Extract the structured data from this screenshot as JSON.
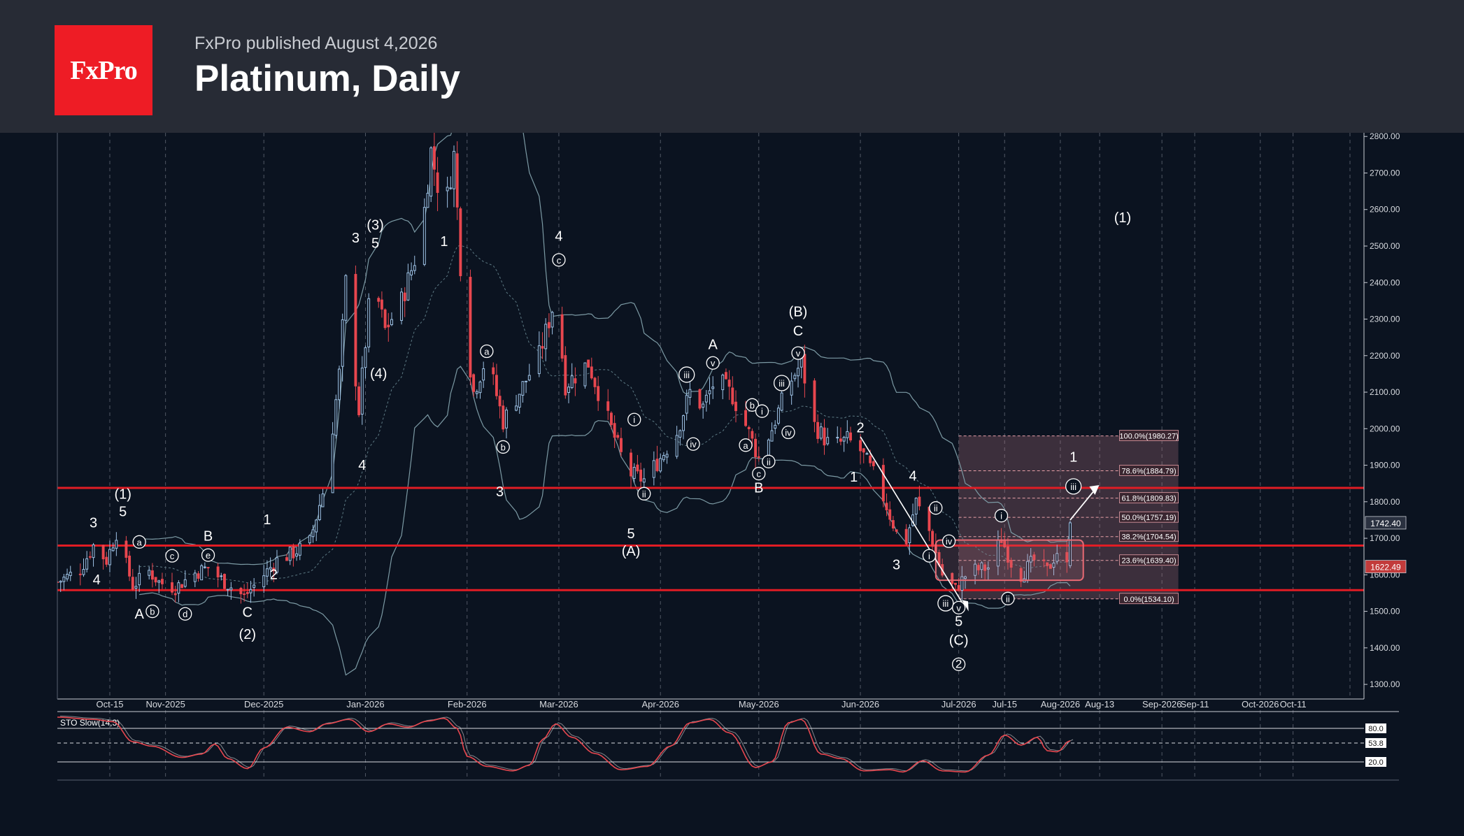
{
  "header": {
    "logo_text": "FxPro",
    "subtitle": "FxPro published August 4,2026",
    "title": "Platinum, Daily"
  },
  "chart_data": {
    "type": "candlestick",
    "title": "Platinum, Daily",
    "ylim": [
      1260,
      2810
    ],
    "y_ticks": [
      "2800.00",
      "2700.00",
      "2600.00",
      "2500.00",
      "2400.00",
      "2300.00",
      "2200.00",
      "2100.00",
      "2000.00",
      "1900.00",
      "1800.00",
      "1700.00",
      "1600.00",
      "1500.00",
      "1400.00",
      "1300.00"
    ],
    "x_range": [
      "2025-09-29",
      "2026-11-01"
    ],
    "x_ticks": [
      {
        "label": "Oct-15",
        "date": "2025-10-15"
      },
      {
        "label": "Nov-2025",
        "date": "2025-11-01"
      },
      {
        "label": "Dec-2025",
        "date": "2025-12-01"
      },
      {
        "label": "Jan-2026",
        "date": "2026-01-01"
      },
      {
        "label": "Feb-2026",
        "date": "2026-02-01"
      },
      {
        "label": "Mar-2026",
        "date": "2026-03-01"
      },
      {
        "label": "Apr-2026",
        "date": "2026-04-01"
      },
      {
        "label": "May-2026",
        "date": "2026-05-01"
      },
      {
        "label": "Jun-2026",
        "date": "2026-06-01"
      },
      {
        "label": "Jul-2026",
        "date": "2026-07-01"
      },
      {
        "label": "Jul-15",
        "date": "2026-07-15"
      },
      {
        "label": "Aug-2026",
        "date": "2026-08-01"
      },
      {
        "label": "Aug-13",
        "date": "2026-08-13"
      },
      {
        "label": "Sep-2026",
        "date": "2026-09-01"
      },
      {
        "label": "Sep-11",
        "date": "2026-09-11"
      },
      {
        "label": "Oct-2026",
        "date": "2026-10-01"
      },
      {
        "label": "Oct-11",
        "date": "2026-10-11"
      }
    ],
    "price_anchors": [
      [
        "2025-09-29",
        1580
      ],
      [
        "2025-10-06",
        1615
      ],
      [
        "2025-10-10",
        1680
      ],
      [
        "2025-10-14",
        1640
      ],
      [
        "2025-10-17",
        1715
      ],
      [
        "2025-10-22",
        1570
      ],
      [
        "2025-10-27",
        1610
      ],
      [
        "2025-10-30",
        1580
      ],
      [
        "2025-11-04",
        1565
      ],
      [
        "2025-11-10",
        1605
      ],
      [
        "2025-11-14",
        1620
      ],
      [
        "2025-11-19",
        1580
      ],
      [
        "2025-11-25",
        1540
      ],
      [
        "2025-12-01",
        1600
      ],
      [
        "2025-12-05",
        1640
      ],
      [
        "2025-12-10",
        1660
      ],
      [
        "2025-12-15",
        1690
      ],
      [
        "2025-12-20",
        1860
      ],
      [
        "2025-12-24",
        2150
      ],
      [
        "2025-12-26",
        2400
      ],
      [
        "2025-12-30",
        2050
      ],
      [
        "2026-01-03",
        2420
      ],
      [
        "2026-01-07",
        2270
      ],
      [
        "2026-01-12",
        2350
      ],
      [
        "2026-01-18",
        2520
      ],
      [
        "2026-01-21",
        2760
      ],
      [
        "2026-01-25",
        2580
      ],
      [
        "2026-01-28",
        2750
      ],
      [
        "2026-01-31",
        2300
      ],
      [
        "2026-02-03",
        2100
      ],
      [
        "2026-02-07",
        2200
      ],
      [
        "2026-02-12",
        2020
      ],
      [
        "2026-02-17",
        2100
      ],
      [
        "2026-02-23",
        2200
      ],
      [
        "2026-02-28",
        2360
      ],
      [
        "2026-03-03",
        2120
      ],
      [
        "2026-03-10",
        2180
      ],
      [
        "2026-03-17",
        2000
      ],
      [
        "2026-03-22",
        1880
      ],
      [
        "2026-03-27",
        1860
      ],
      [
        "2026-04-01",
        1920
      ],
      [
        "2026-04-06",
        1990
      ],
      [
        "2026-04-10",
        2100
      ],
      [
        "2026-04-14",
        2060
      ],
      [
        "2026-04-18",
        2140
      ],
      [
        "2026-04-23",
        2090
      ],
      [
        "2026-04-27",
        2010
      ],
      [
        "2026-05-01",
        1920
      ],
      [
        "2026-05-05",
        2000
      ],
      [
        "2026-05-10",
        2120
      ],
      [
        "2026-05-14",
        2180
      ],
      [
        "2026-05-18",
        2010
      ],
      [
        "2026-05-23",
        1950
      ],
      [
        "2026-05-28",
        1970
      ],
      [
        "2026-06-01",
        1940
      ],
      [
        "2026-06-06",
        1860
      ],
      [
        "2026-06-11",
        1740
      ],
      [
        "2026-06-14",
        1660
      ],
      [
        "2026-06-18",
        1800
      ],
      [
        "2026-06-22",
        1720
      ],
      [
        "2026-06-26",
        1600
      ],
      [
        "2026-06-30",
        1560
      ],
      [
        "2026-07-04",
        1610
      ],
      [
        "2026-07-10",
        1620
      ],
      [
        "2026-07-14",
        1700
      ],
      [
        "2026-07-19",
        1590
      ],
      [
        "2026-07-24",
        1640
      ],
      [
        "2026-07-28",
        1610
      ],
      [
        "2026-07-31",
        1665
      ],
      [
        "2026-08-03",
        1622
      ],
      [
        "2026-08-04",
        1742
      ]
    ],
    "horizontal_levels": [
      1838,
      1680,
      1558
    ],
    "fibonacci": {
      "levels": [
        {
          "label": "100.0%(1980.27)",
          "price": 1980.27
        },
        {
          "label": "78.6%(1884.79)",
          "price": 1884.79
        },
        {
          "label": "61.8%(1809.83)",
          "price": 1809.83
        },
        {
          "label": "50.0%(1757.19)",
          "price": 1757.19
        },
        {
          "label": "38.2%(1704.54)",
          "price": 1704.54
        },
        {
          "label": "23.6%(1639.40)",
          "price": 1639.4
        },
        {
          "label": "0.0%(1534.10)",
          "price": 1534.1
        }
      ],
      "start_date": "2026-07-01",
      "end_date": "2026-09-06"
    },
    "price_labels": [
      {
        "label": "1742.40",
        "price": 1742.4,
        "color": "#2a3140"
      },
      {
        "label": "1622.49",
        "price": 1622.49,
        "color": "#c23b3b"
      }
    ],
    "wave_labels": [
      {
        "text": "(1)",
        "date": "2025-10-19",
        "price": 1808
      },
      {
        "text": "5",
        "date": "2025-10-19",
        "price": 1760
      },
      {
        "text": "3",
        "date": "2025-10-10",
        "price": 1730
      },
      {
        "text": "4",
        "date": "2025-10-11",
        "price": 1574
      },
      {
        "text": "A",
        "date": "2025-10-24",
        "price": 1480
      },
      {
        "text": "B",
        "date": "2025-11-14",
        "price": 1693
      },
      {
        "text": "C",
        "date": "2025-11-26",
        "price": 1485
      },
      {
        "text": "(2)",
        "date": "2025-11-26",
        "price": 1425
      },
      {
        "text": "1",
        "date": "2025-12-02",
        "price": 1738
      },
      {
        "text": "2",
        "date": "2025-12-04",
        "price": 1588
      },
      {
        "text": "3",
        "date": "2025-12-29",
        "price": 2510
      },
      {
        "text": "(3)",
        "date": "2026-01-04",
        "price": 2545
      },
      {
        "text": "5",
        "date": "2026-01-04",
        "price": 2495
      },
      {
        "text": "(4)",
        "date": "2026-01-05",
        "price": 2138
      },
      {
        "text": "4",
        "date": "2025-12-31",
        "price": 1888
      },
      {
        "text": "1",
        "date": "2026-01-25",
        "price": 2500
      },
      {
        "text": "3",
        "date": "2026-02-11",
        "price": 1815
      },
      {
        "text": "4",
        "date": "2026-03-01",
        "price": 2514
      },
      {
        "text": "5",
        "date": "2026-03-23",
        "price": 1700
      },
      {
        "text": "(A)",
        "date": "2026-03-23",
        "price": 1652
      },
      {
        "text": "A",
        "date": "2026-04-17",
        "price": 2218
      },
      {
        "text": "B",
        "date": "2026-05-01",
        "price": 1825
      },
      {
        "text": "(B)",
        "date": "2026-05-13",
        "price": 2308
      },
      {
        "text": "C",
        "date": "2026-05-13",
        "price": 2255
      },
      {
        "text": "2",
        "date": "2026-06-01",
        "price": 1990
      },
      {
        "text": "1",
        "date": "2026-05-30",
        "price": 1855
      },
      {
        "text": "3",
        "date": "2026-06-12",
        "price": 1615
      },
      {
        "text": "4",
        "date": "2026-06-17",
        "price": 1858
      },
      {
        "text": "5",
        "date": "2026-07-01",
        "price": 1460
      },
      {
        "text": "(C)",
        "date": "2026-07-01",
        "price": 1408
      },
      {
        "text": "1",
        "date": "2026-08-05",
        "price": 1910
      },
      {
        "text": "(1)",
        "date": "2026-08-20",
        "price": 2565
      }
    ],
    "circled_labels": [
      {
        "text": "a",
        "date": "2025-10-24",
        "price": 1690
      },
      {
        "text": "b",
        "date": "2025-10-28",
        "price": 1500
      },
      {
        "text": "c",
        "date": "2025-11-03",
        "price": 1652
      },
      {
        "text": "d",
        "date": "2025-11-07",
        "price": 1493
      },
      {
        "text": "e",
        "date": "2025-11-14",
        "price": 1654
      },
      {
        "text": "a",
        "date": "2026-02-07",
        "price": 2212
      },
      {
        "text": "b",
        "date": "2026-02-12",
        "price": 1950
      },
      {
        "text": "c",
        "date": "2026-03-01",
        "price": 2462
      },
      {
        "text": "i",
        "date": "2026-03-24",
        "price": 2025
      },
      {
        "text": "ii",
        "date": "2026-03-27",
        "price": 1822
      },
      {
        "text": "iii",
        "date": "2026-04-09",
        "price": 2148
      },
      {
        "text": "iv",
        "date": "2026-04-11",
        "price": 1958
      },
      {
        "text": "v",
        "date": "2026-04-17",
        "price": 2180
      },
      {
        "text": "a",
        "date": "2026-04-27",
        "price": 1955
      },
      {
        "text": "b",
        "date": "2026-04-29",
        "price": 2065
      },
      {
        "text": "c",
        "date": "2026-05-01",
        "price": 1877
      },
      {
        "text": "i",
        "date": "2026-05-02",
        "price": 2048
      },
      {
        "text": "ii",
        "date": "2026-05-04",
        "price": 1910
      },
      {
        "text": "iii",
        "date": "2026-05-08",
        "price": 2125
      },
      {
        "text": "iv",
        "date": "2026-05-10",
        "price": 1990
      },
      {
        "text": "v",
        "date": "2026-05-13",
        "price": 2207
      },
      {
        "text": "i",
        "date": "2026-06-22",
        "price": 1652
      },
      {
        "text": "ii",
        "date": "2026-06-24",
        "price": 1783
      },
      {
        "text": "iii",
        "date": "2026-06-27",
        "price": 1522
      },
      {
        "text": "iv",
        "date": "2026-06-28",
        "price": 1692
      },
      {
        "text": "v",
        "date": "2026-07-01",
        "price": 1510
      },
      {
        "text": "i",
        "date": "2026-07-14",
        "price": 1762
      },
      {
        "text": "ii",
        "date": "2026-07-16",
        "price": 1535
      },
      {
        "text": "iii",
        "date": "2026-08-05",
        "price": 1842
      },
      {
        "text": "2",
        "date": "2026-07-01",
        "price": 1355
      }
    ],
    "indicator": {
      "name": "STO Slow(14,3)",
      "levels": [
        "80.0",
        "53.8",
        "20.0"
      ],
      "anchors": [
        [
          "2025-09-29",
          100
        ],
        [
          "2025-10-10",
          96
        ],
        [
          "2025-10-16",
          92
        ],
        [
          "2025-10-22",
          56
        ],
        [
          "2025-10-28",
          48
        ],
        [
          "2025-11-06",
          28
        ],
        [
          "2025-11-12",
          34
        ],
        [
          "2025-11-16",
          52
        ],
        [
          "2025-11-20",
          26
        ],
        [
          "2025-11-26",
          8
        ],
        [
          "2025-12-01",
          45
        ],
        [
          "2025-12-08",
          82
        ],
        [
          "2025-12-15",
          74
        ],
        [
          "2025-12-20",
          88
        ],
        [
          "2025-12-27",
          96
        ],
        [
          "2026-01-02",
          74
        ],
        [
          "2026-01-08",
          88
        ],
        [
          "2026-01-14",
          82
        ],
        [
          "2026-01-20",
          93
        ],
        [
          "2026-01-25",
          98
        ],
        [
          "2026-01-29",
          80
        ],
        [
          "2026-02-01",
          30
        ],
        [
          "2026-02-07",
          12
        ],
        [
          "2026-02-15",
          4
        ],
        [
          "2026-02-20",
          14
        ],
        [
          "2026-02-24",
          60
        ],
        [
          "2026-02-28",
          88
        ],
        [
          "2026-03-05",
          64
        ],
        [
          "2026-03-12",
          35
        ],
        [
          "2026-03-20",
          6
        ],
        [
          "2026-03-28",
          12
        ],
        [
          "2026-04-04",
          48
        ],
        [
          "2026-04-10",
          90
        ],
        [
          "2026-04-16",
          96
        ],
        [
          "2026-04-22",
          72
        ],
        [
          "2026-04-30",
          10
        ],
        [
          "2026-05-05",
          20
        ],
        [
          "2026-05-10",
          90
        ],
        [
          "2026-05-14",
          96
        ],
        [
          "2026-05-20",
          34
        ],
        [
          "2026-05-26",
          26
        ],
        [
          "2026-06-02",
          4
        ],
        [
          "2026-06-10",
          6
        ],
        [
          "2026-06-14",
          2
        ],
        [
          "2026-06-20",
          22
        ],
        [
          "2026-06-26",
          4
        ],
        [
          "2026-07-03",
          2
        ],
        [
          "2026-07-10",
          32
        ],
        [
          "2026-07-15",
          68
        ],
        [
          "2026-07-20",
          50
        ],
        [
          "2026-07-25",
          64
        ],
        [
          "2026-07-28",
          40
        ],
        [
          "2026-07-31",
          38
        ],
        [
          "2026-08-04",
          58
        ]
      ]
    }
  }
}
